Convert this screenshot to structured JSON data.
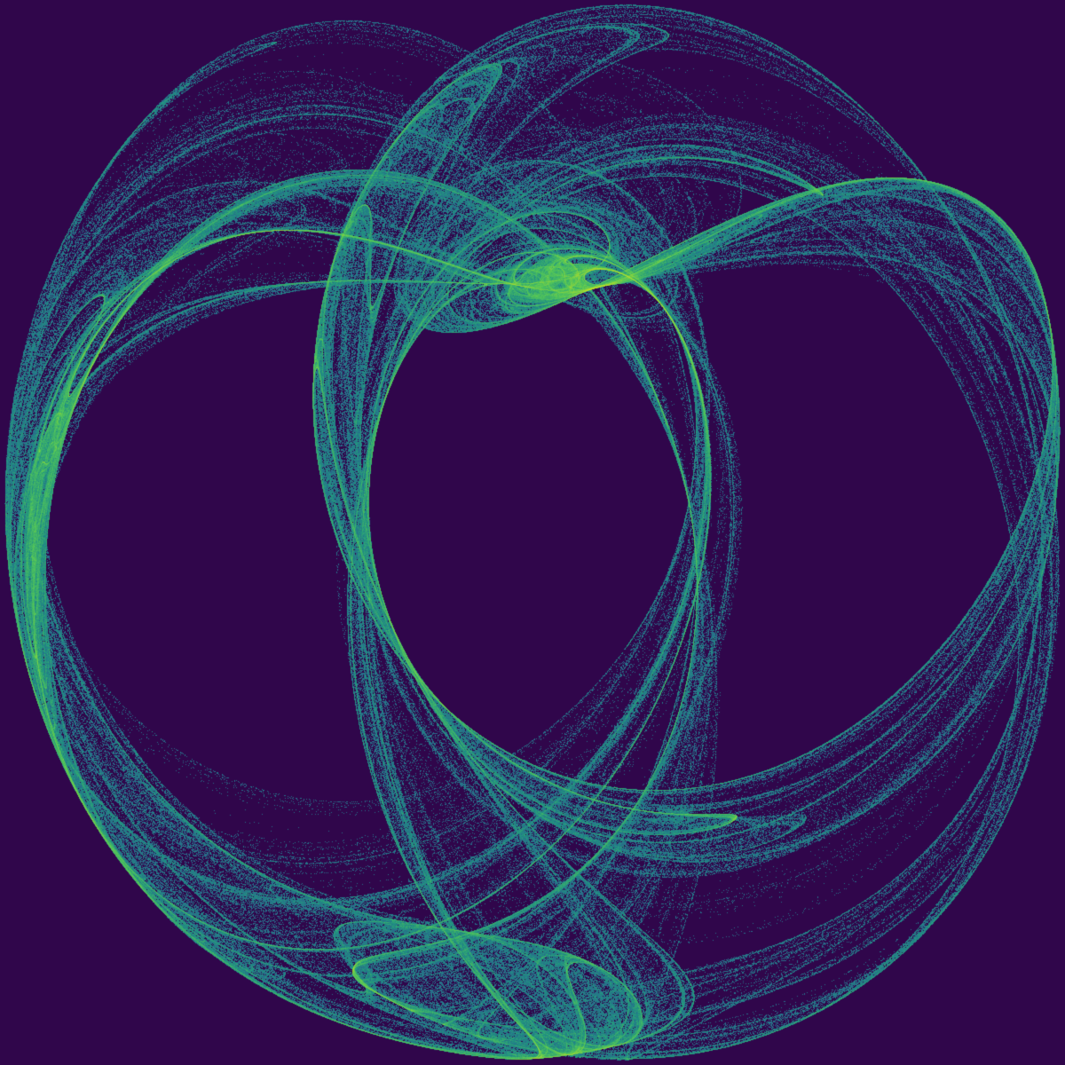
{
  "image": {
    "subject": "strange-attractor-density-render",
    "colormap": "viridis",
    "colors": {
      "background": "#30064b",
      "low": "#2a5c8c",
      "mid": "#27a27e",
      "high": "#d6e51a"
    }
  }
}
